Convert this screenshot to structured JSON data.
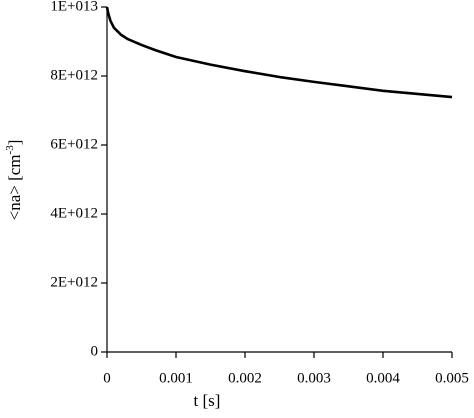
{
  "chart_data": {
    "type": "line",
    "xlabel": "t [s]",
    "ylabel": [
      "<na> [cm",
      "-3",
      "]"
    ],
    "x": [
      0,
      2e-05,
      5e-05,
      0.0001,
      0.0002,
      0.0003,
      0.0005,
      0.0007,
      0.001,
      0.0015,
      0.002,
      0.0025,
      0.003,
      0.0035,
      0.004,
      0.0045,
      0.005
    ],
    "series": [
      {
        "color": "#000000",
        "values": [
          10000000000000.0,
          9800000000000.0,
          9600000000000.0,
          9400000000000.0,
          9200000000000.0,
          9070000000000.0,
          8900000000000.0,
          8750000000000.0,
          8550000000000.0,
          8330000000000.0,
          8140000000000.0,
          7970000000000.0,
          7830000000000.0,
          7700000000000.0,
          7570000000000.0,
          7480000000000.0,
          7390000000000.0
        ]
      }
    ],
    "xlim": [
      0,
      0.005
    ],
    "ylim": [
      0,
      10000000000000.0
    ],
    "xticks": [
      0,
      0.001,
      0.002,
      0.003,
      0.004,
      0.005
    ],
    "yticks": [
      0,
      {
        "value": 2000000000000.0,
        "label": "2E+012"
      },
      {
        "value": 4000000000000.0,
        "label": "4E+012"
      },
      {
        "value": 6000000000000.0,
        "label": "6E+012"
      },
      {
        "value": 8000000000000.0,
        "label": "8E+012"
      },
      {
        "value": 10000000000000.0,
        "label": "1E+013"
      }
    ],
    "grid": false
  }
}
